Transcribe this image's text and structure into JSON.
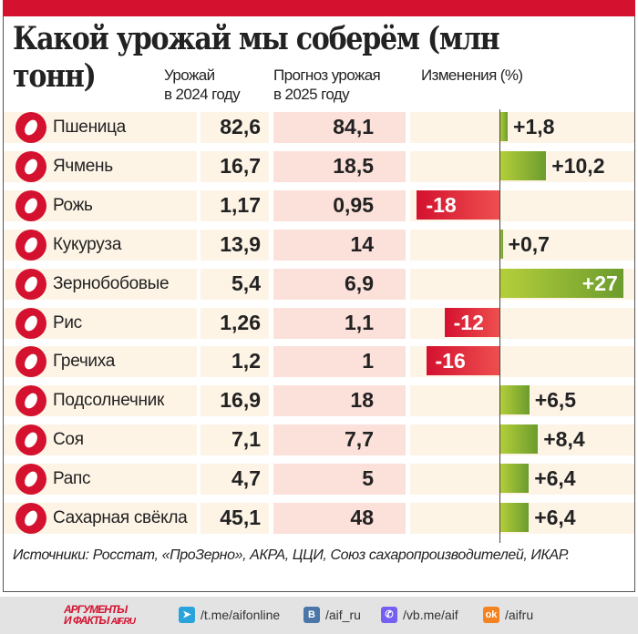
{
  "chart_data": {
    "type": "table",
    "title": "Какой урожай мы соберём (млн тонн)",
    "columns": [
      "Урожай в 2024 году",
      "Прогноз урожая в 2025 году",
      "Изменения (%)"
    ],
    "rows": [
      {
        "name": "Пшеница",
        "y2024": "82,6",
        "y2025": "84,1",
        "change": 1.8,
        "change_label": "+1,8"
      },
      {
        "name": "Ячмень",
        "y2024": "16,7",
        "y2025": "18,5",
        "change": 10.2,
        "change_label": "+10,2"
      },
      {
        "name": "Рожь",
        "y2024": "1,17",
        "y2025": "0,95",
        "change": -18,
        "change_label": "-18"
      },
      {
        "name": "Кукуруза",
        "y2024": "13,9",
        "y2025": "14",
        "change": 0.7,
        "change_label": "+0,7"
      },
      {
        "name": "Зернобобовые",
        "y2024": "5,4",
        "y2025": "6,9",
        "change": 27,
        "change_label": "+27"
      },
      {
        "name": "Рис",
        "y2024": "1,26",
        "y2025": "1,1",
        "change": -12,
        "change_label": "-12"
      },
      {
        "name": "Гречиха",
        "y2024": "1,2",
        "y2025": "1",
        "change": -16,
        "change_label": "-16"
      },
      {
        "name": "Подсолнечник",
        "y2024": "16,9",
        "y2025": "18",
        "change": 6.5,
        "change_label": "+6,5"
      },
      {
        "name": "Соя",
        "y2024": "7,1",
        "y2025": "7,7",
        "change": 8.4,
        "change_label": "+8,4"
      },
      {
        "name": "Рапс",
        "y2024": "4,7",
        "y2025": "5",
        "change": 6.4,
        "change_label": "+6,4"
      },
      {
        "name": "Сахарная свёкла",
        "y2024": "45,1",
        "y2025": "48",
        "change": 6.4,
        "change_label": "+6,4"
      }
    ],
    "colors": {
      "positive": "#7aa832",
      "negative": "#d4112f"
    }
  },
  "header": {
    "col1_line1": "Урожай",
    "col1_line2": "в 2024 году",
    "col2_line1": "Прогноз урожая",
    "col2_line2": "в 2025 году",
    "col3": "Изменения (%)"
  },
  "sources": "Источники: Росстат, «ПроЗерно», АКРА, ЦЦИ, Союз сахаропроизводителей, ИКАР.",
  "footer": {
    "logo_line1": "АРГУМЕНТЫ",
    "logo_line2": "И ФАКТЫ",
    "logo_site": "AIF.RU",
    "links": [
      {
        "icon": "telegram-icon",
        "glyph": "➤",
        "color": "#2aa3db",
        "text": "/t.me/aifonline"
      },
      {
        "icon": "vk-icon",
        "glyph": "В",
        "color": "#4a76a8",
        "text": "/aif_ru"
      },
      {
        "icon": "viber-icon",
        "glyph": "✆",
        "color": "#7360f2",
        "text": "/vb.me/aif"
      },
      {
        "icon": "ok-icon",
        "glyph": "ok",
        "color": "#f58220",
        "text": "/aifru"
      }
    ]
  }
}
